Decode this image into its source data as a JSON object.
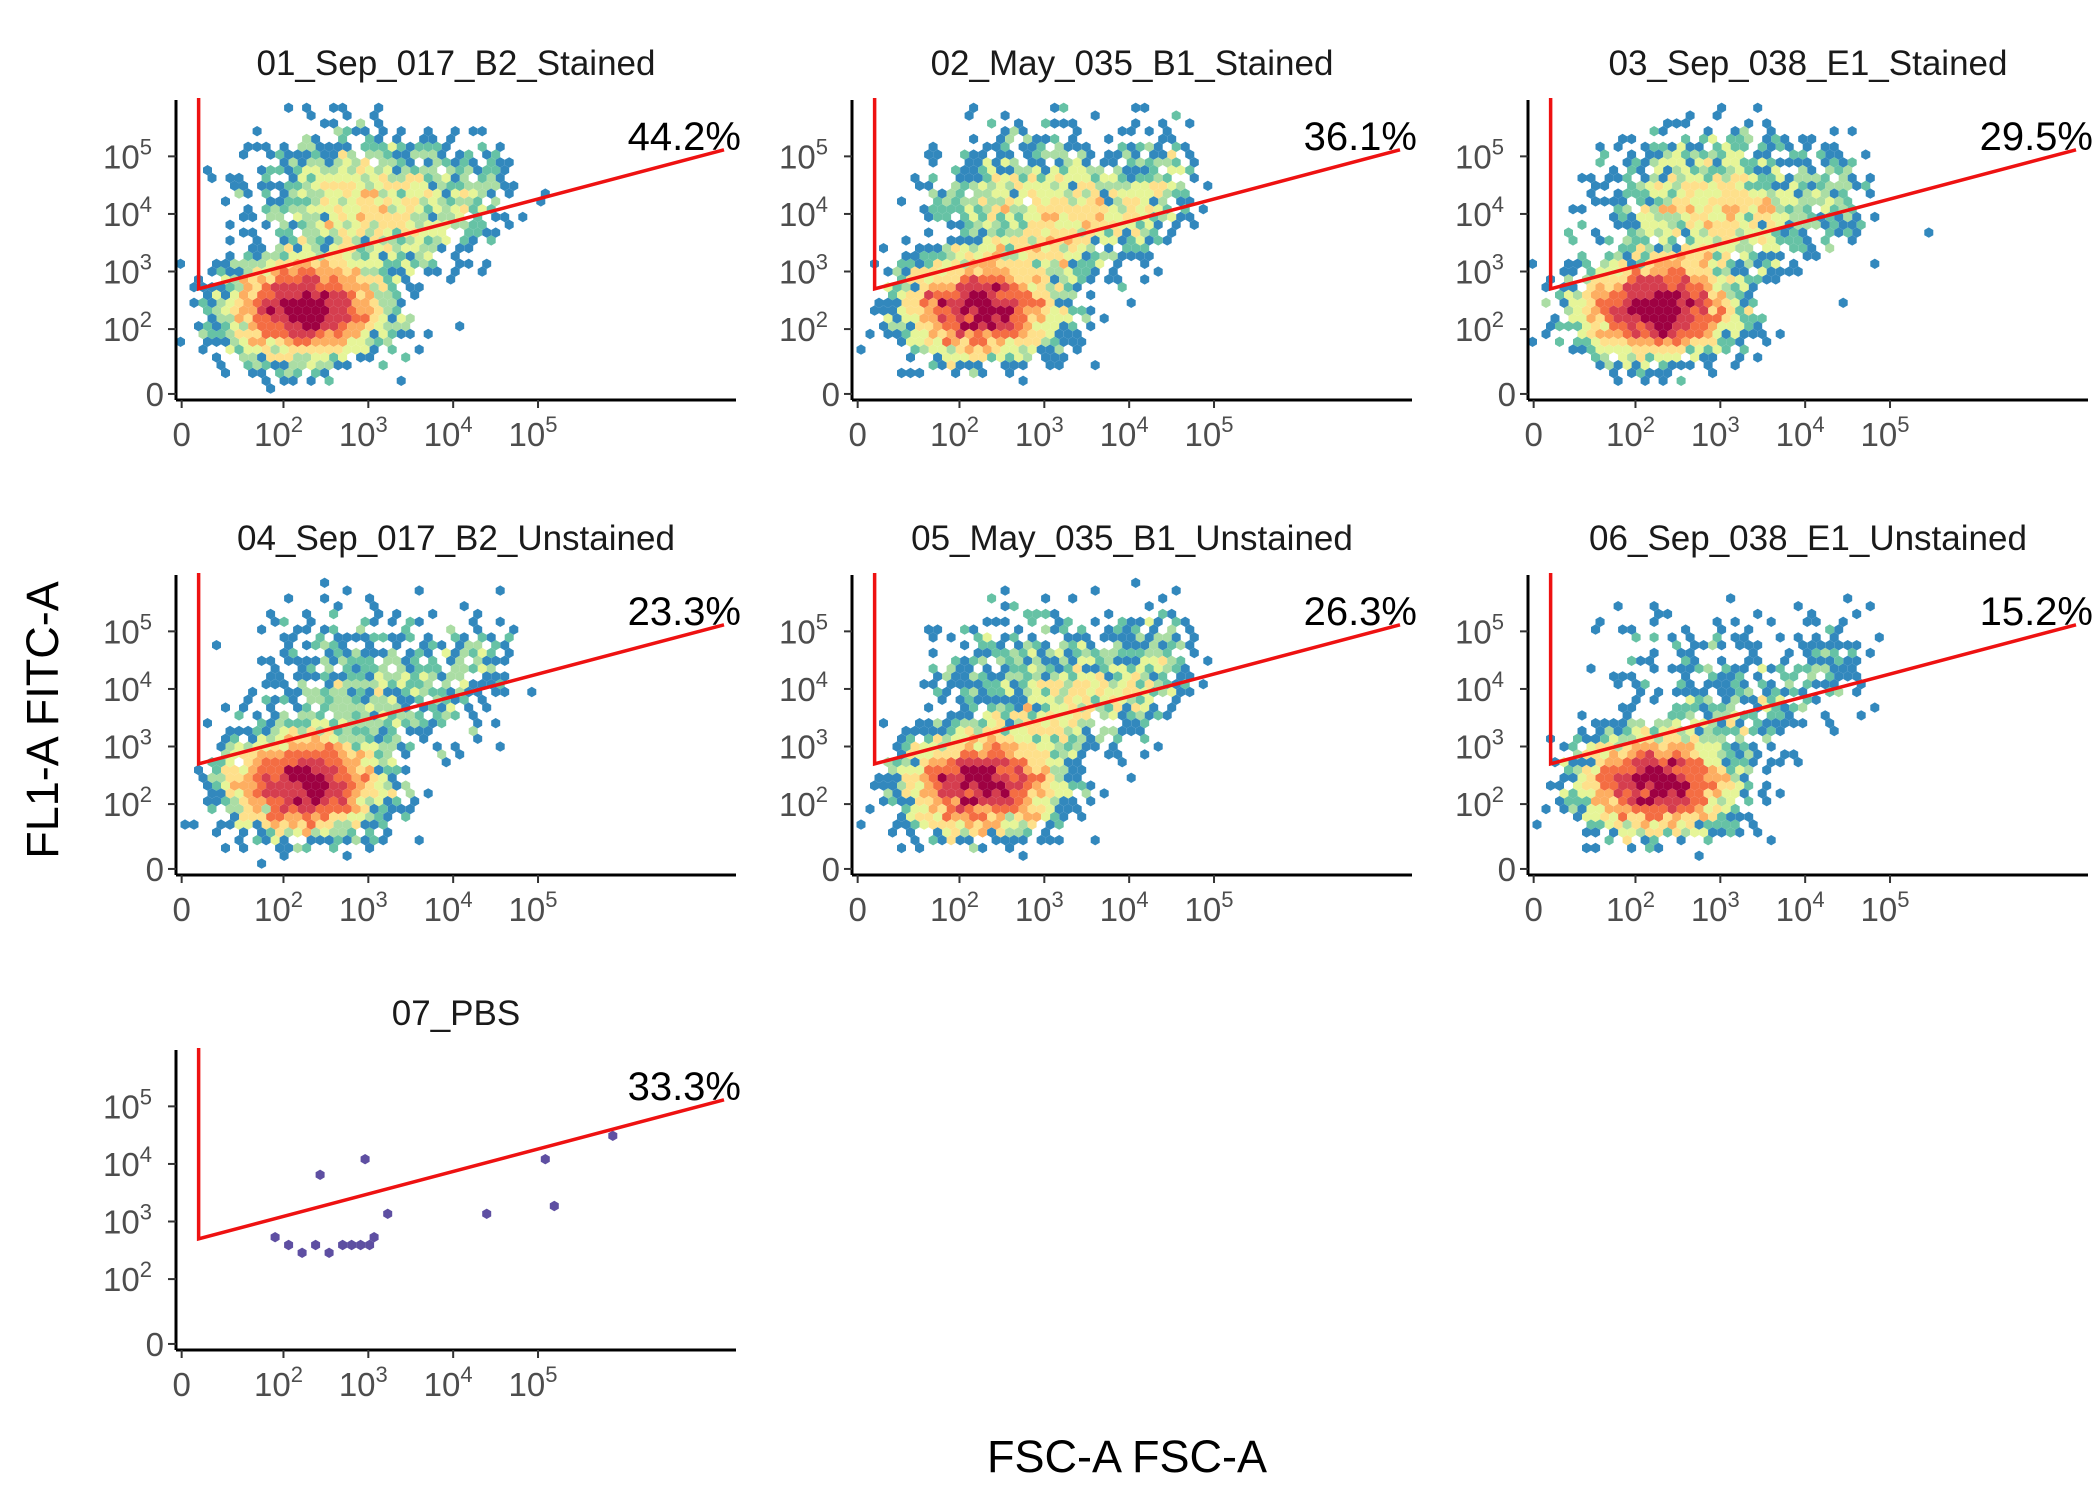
{
  "figure": {
    "xlabel": "FSC-A FSC-A",
    "ylabel": "FL1-A FITC-A"
  },
  "chart_data": {
    "type": "heatmap",
    "subtype": "hexbin flow-cytometry density panels",
    "x_axis": {
      "label": "FSC-A FSC-A",
      "scale": "biexponential",
      "ticks": [
        0,
        100,
        1000,
        10000,
        100000
      ],
      "tick_labels": [
        {
          "base": "0",
          "exp": ""
        },
        {
          "base": "10",
          "exp": "2"
        },
        {
          "base": "10",
          "exp": "3"
        },
        {
          "base": "10",
          "exp": "4"
        },
        {
          "base": "10",
          "exp": "5"
        }
      ]
    },
    "y_axis": {
      "label": "FL1-A FITC-A",
      "scale": "biexponential",
      "ticks": [
        0,
        100,
        1000,
        10000,
        100000
      ],
      "tick_labels": [
        {
          "base": "0",
          "exp": ""
        },
        {
          "base": "10",
          "exp": "2"
        },
        {
          "base": "10",
          "exp": "3"
        },
        {
          "base": "10",
          "exp": "4"
        },
        {
          "base": "10",
          "exp": "5"
        }
      ]
    },
    "gate": {
      "color": "#ee1111",
      "vertex_x": 10,
      "vertex_y": 500,
      "end_x": 1000000,
      "end_y": 130000
    },
    "color_scale": [
      "#5e4fa2",
      "#3288bd",
      "#66c2a5",
      "#abdda4",
      "#e6f598",
      "#fee08b",
      "#fdae61",
      "#f46d43",
      "#d53e4f",
      "#9e0142"
    ],
    "panels": [
      {
        "title": "01_Sep_017_B2_Stained",
        "gate_percent": "44.2%",
        "density": 1.0,
        "upper_cloud": 0.8,
        "tail": 0.55,
        "sparse": false
      },
      {
        "title": "02_May_035_B1_Stained",
        "gate_percent": "36.1%",
        "density": 0.6,
        "upper_cloud": 0.6,
        "tail": 0.85,
        "sparse": false
      },
      {
        "title": "03_Sep_038_E1_Stained",
        "gate_percent": "29.5%",
        "density": 0.7,
        "upper_cloud": 0.75,
        "tail": 0.45,
        "sparse": false
      },
      {
        "title": "04_Sep_017_B2_Unstained",
        "gate_percent": "23.3%",
        "density": 0.85,
        "upper_cloud": 0.25,
        "tail": 0.4,
        "sparse": false
      },
      {
        "title": "05_May_035_B1_Unstained",
        "gate_percent": "26.3%",
        "density": 0.6,
        "upper_cloud": 0.3,
        "tail": 0.8,
        "sparse": false
      },
      {
        "title": "06_Sep_038_E1_Unstained",
        "gate_percent": "15.2%",
        "density": 0.55,
        "upper_cloud": 0.1,
        "tail": 0.3,
        "sparse": false
      },
      {
        "title": "07_PBS",
        "gate_percent": "33.3%",
        "density": 0.0,
        "upper_cloud": 0.0,
        "tail": 0.0,
        "sparse": true,
        "events": [
          [
            80,
            500
          ],
          [
            120,
            380
          ],
          [
            180,
            300
          ],
          [
            230,
            350
          ],
          [
            350,
            330
          ],
          [
            450,
            340
          ],
          [
            600,
            420
          ],
          [
            800,
            380
          ],
          [
            1100,
            450
          ],
          [
            1300,
            600
          ],
          [
            1500,
            1300
          ],
          [
            250,
            7000
          ],
          [
            900,
            12000
          ],
          [
            25000,
            1300
          ],
          [
            150000,
            1600
          ],
          [
            120000,
            12000
          ],
          [
            700000,
            35000
          ]
        ]
      }
    ]
  }
}
